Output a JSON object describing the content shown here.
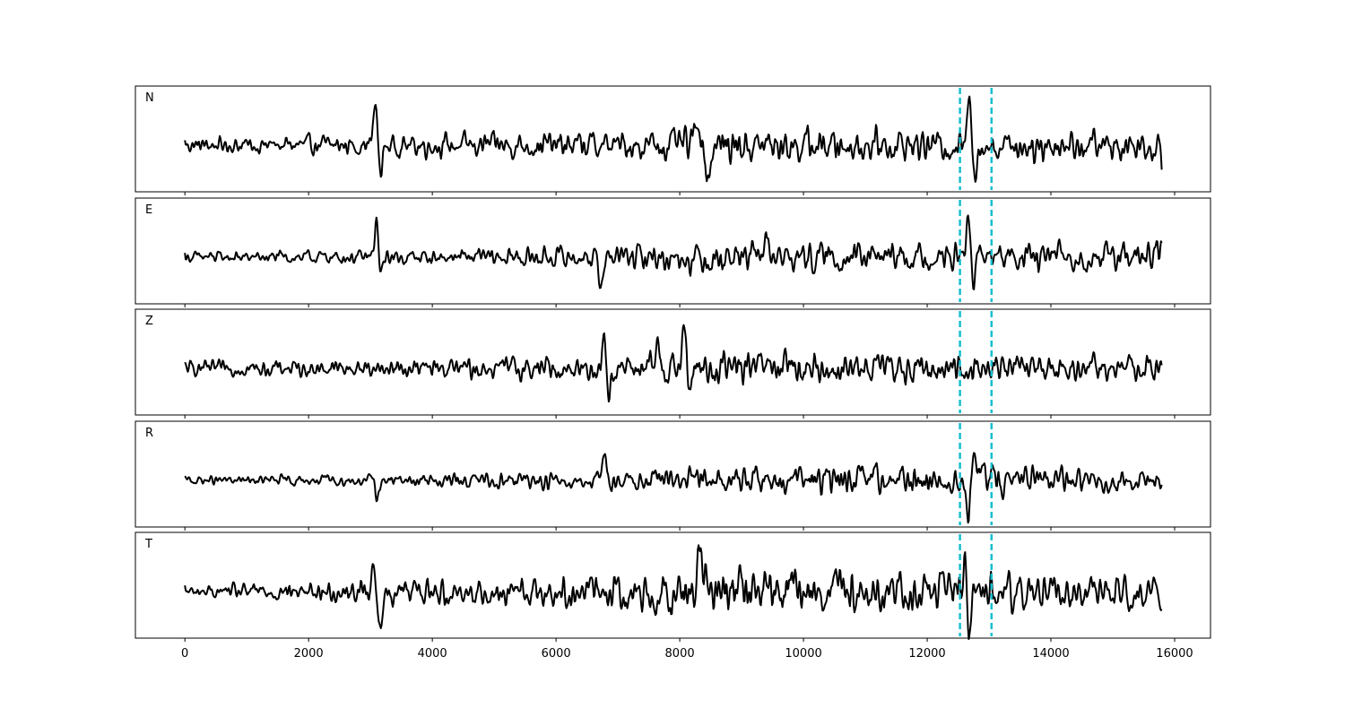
{
  "chart_data": {
    "type": "line",
    "title": "",
    "xlabel": "",
    "ylabel": "",
    "xlim": [
      -800,
      16580
    ],
    "x_ticks": [
      0,
      2000,
      4000,
      6000,
      8000,
      10000,
      12000,
      14000,
      16000
    ],
    "x_tick_labels": [
      "0",
      "2000",
      "4000",
      "6000",
      "8000",
      "10000",
      "12000",
      "14000",
      "16000"
    ],
    "x_range": [
      0,
      15800
    ],
    "markers": [
      12530,
      13040
    ],
    "colors": {
      "trace": "#000000",
      "marker": "#17becf"
    },
    "panels": [
      {
        "label": "N",
        "noise": [
          [
            0,
            0.16
          ],
          [
            3000,
            0.22
          ],
          [
            6700,
            0.3
          ],
          [
            8200,
            0.38
          ],
          [
            12500,
            0.33
          ],
          [
            15800,
            0.34
          ]
        ],
        "events": [
          [
            3080,
            0.95,
            45
          ],
          [
            3160,
            -0.65,
            45
          ],
          [
            8300,
            0.55,
            70
          ],
          [
            8450,
            -0.7,
            60
          ],
          [
            12680,
            1.0,
            40
          ],
          [
            12760,
            -0.55,
            40
          ]
        ]
      },
      {
        "label": "E",
        "noise": [
          [
            0,
            0.1
          ],
          [
            3000,
            0.12
          ],
          [
            6700,
            0.2
          ],
          [
            8200,
            0.28
          ],
          [
            12500,
            0.22
          ],
          [
            15800,
            0.28
          ]
        ],
        "events": [
          [
            3100,
            0.9,
            40
          ],
          [
            3160,
            -0.5,
            40
          ],
          [
            6720,
            -0.55,
            50
          ],
          [
            9400,
            0.4,
            60
          ],
          [
            12660,
            1.0,
            40
          ],
          [
            12740,
            -0.6,
            40
          ]
        ]
      },
      {
        "label": "Z",
        "noise": [
          [
            0,
            0.12
          ],
          [
            3000,
            0.15
          ],
          [
            6700,
            0.22
          ],
          [
            8000,
            0.3
          ],
          [
            12500,
            0.25
          ],
          [
            15800,
            0.22
          ]
        ],
        "events": [
          [
            6780,
            0.7,
            50
          ],
          [
            6850,
            -0.6,
            50
          ],
          [
            8080,
            1.0,
            45
          ],
          [
            8150,
            -0.5,
            50
          ],
          [
            7650,
            0.45,
            60
          ]
        ]
      },
      {
        "label": "R",
        "noise": [
          [
            0,
            0.08
          ],
          [
            3000,
            0.1
          ],
          [
            6700,
            0.18
          ],
          [
            8200,
            0.25
          ],
          [
            12500,
            0.28
          ],
          [
            15800,
            0.2
          ]
        ],
        "events": [
          [
            3080,
            0.3,
            40
          ],
          [
            3100,
            -0.65,
            40
          ],
          [
            6780,
            0.4,
            50
          ],
          [
            12660,
            -1.0,
            40
          ],
          [
            12760,
            0.6,
            40
          ],
          [
            12900,
            0.45,
            40
          ]
        ]
      },
      {
        "label": "T",
        "noise": [
          [
            0,
            0.1
          ],
          [
            3000,
            0.22
          ],
          [
            6500,
            0.3
          ],
          [
            8300,
            0.45
          ],
          [
            12500,
            0.38
          ],
          [
            15800,
            0.3
          ]
        ],
        "events": [
          [
            3050,
            0.7,
            40
          ],
          [
            3160,
            -1.0,
            45
          ],
          [
            8330,
            0.85,
            50
          ],
          [
            8420,
            0.8,
            50
          ],
          [
            12680,
            -0.95,
            40
          ],
          [
            12600,
            0.6,
            40
          ]
        ]
      }
    ]
  }
}
